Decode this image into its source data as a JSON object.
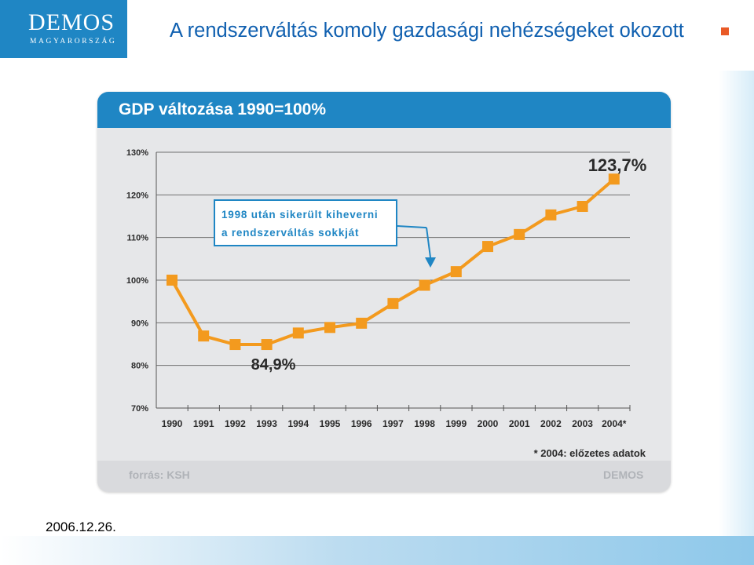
{
  "slide": {
    "title": "A rendszerváltás komoly gazdasági nehézségeket okozott",
    "date": "2006.12.26.",
    "logo": {
      "line1": "DEMOS",
      "line2": "MAGYARORSZÁG"
    }
  },
  "colors": {
    "brand_blue": "#1f86c4",
    "title_blue": "#1060b0",
    "series_orange": "#f39a1e",
    "bullet_orange": "#e95a27",
    "card_bg": "#e6e7e9"
  },
  "chart_data": {
    "type": "line",
    "title": "GDP változása 1990=100%",
    "categories": [
      "1990",
      "1991",
      "1992",
      "1993",
      "1994",
      "1995",
      "1996",
      "1997",
      "1998",
      "1999",
      "2000",
      "2001",
      "2002",
      "2003",
      "2004*"
    ],
    "values": [
      100,
      86.9,
      84.9,
      84.9,
      87.6,
      88.9,
      89.9,
      94.5,
      98.8,
      102.0,
      107.9,
      110.7,
      115.3,
      117.3,
      123.7
    ],
    "ylim": [
      70,
      130
    ],
    "yticks": [
      "70%",
      "80%",
      "90%",
      "100%",
      "110%",
      "120%",
      "130%"
    ],
    "grid": true,
    "annotations": {
      "max_label": "123,7%",
      "min_label": "84,9%",
      "callout_line1": "1998 után sikerült kiheverni",
      "callout_line2": "a rendszerváltás sokkját",
      "footnote": "* 2004: előzetes adatok",
      "source": "forrás: KSH",
      "brand": "DEMOS"
    }
  }
}
